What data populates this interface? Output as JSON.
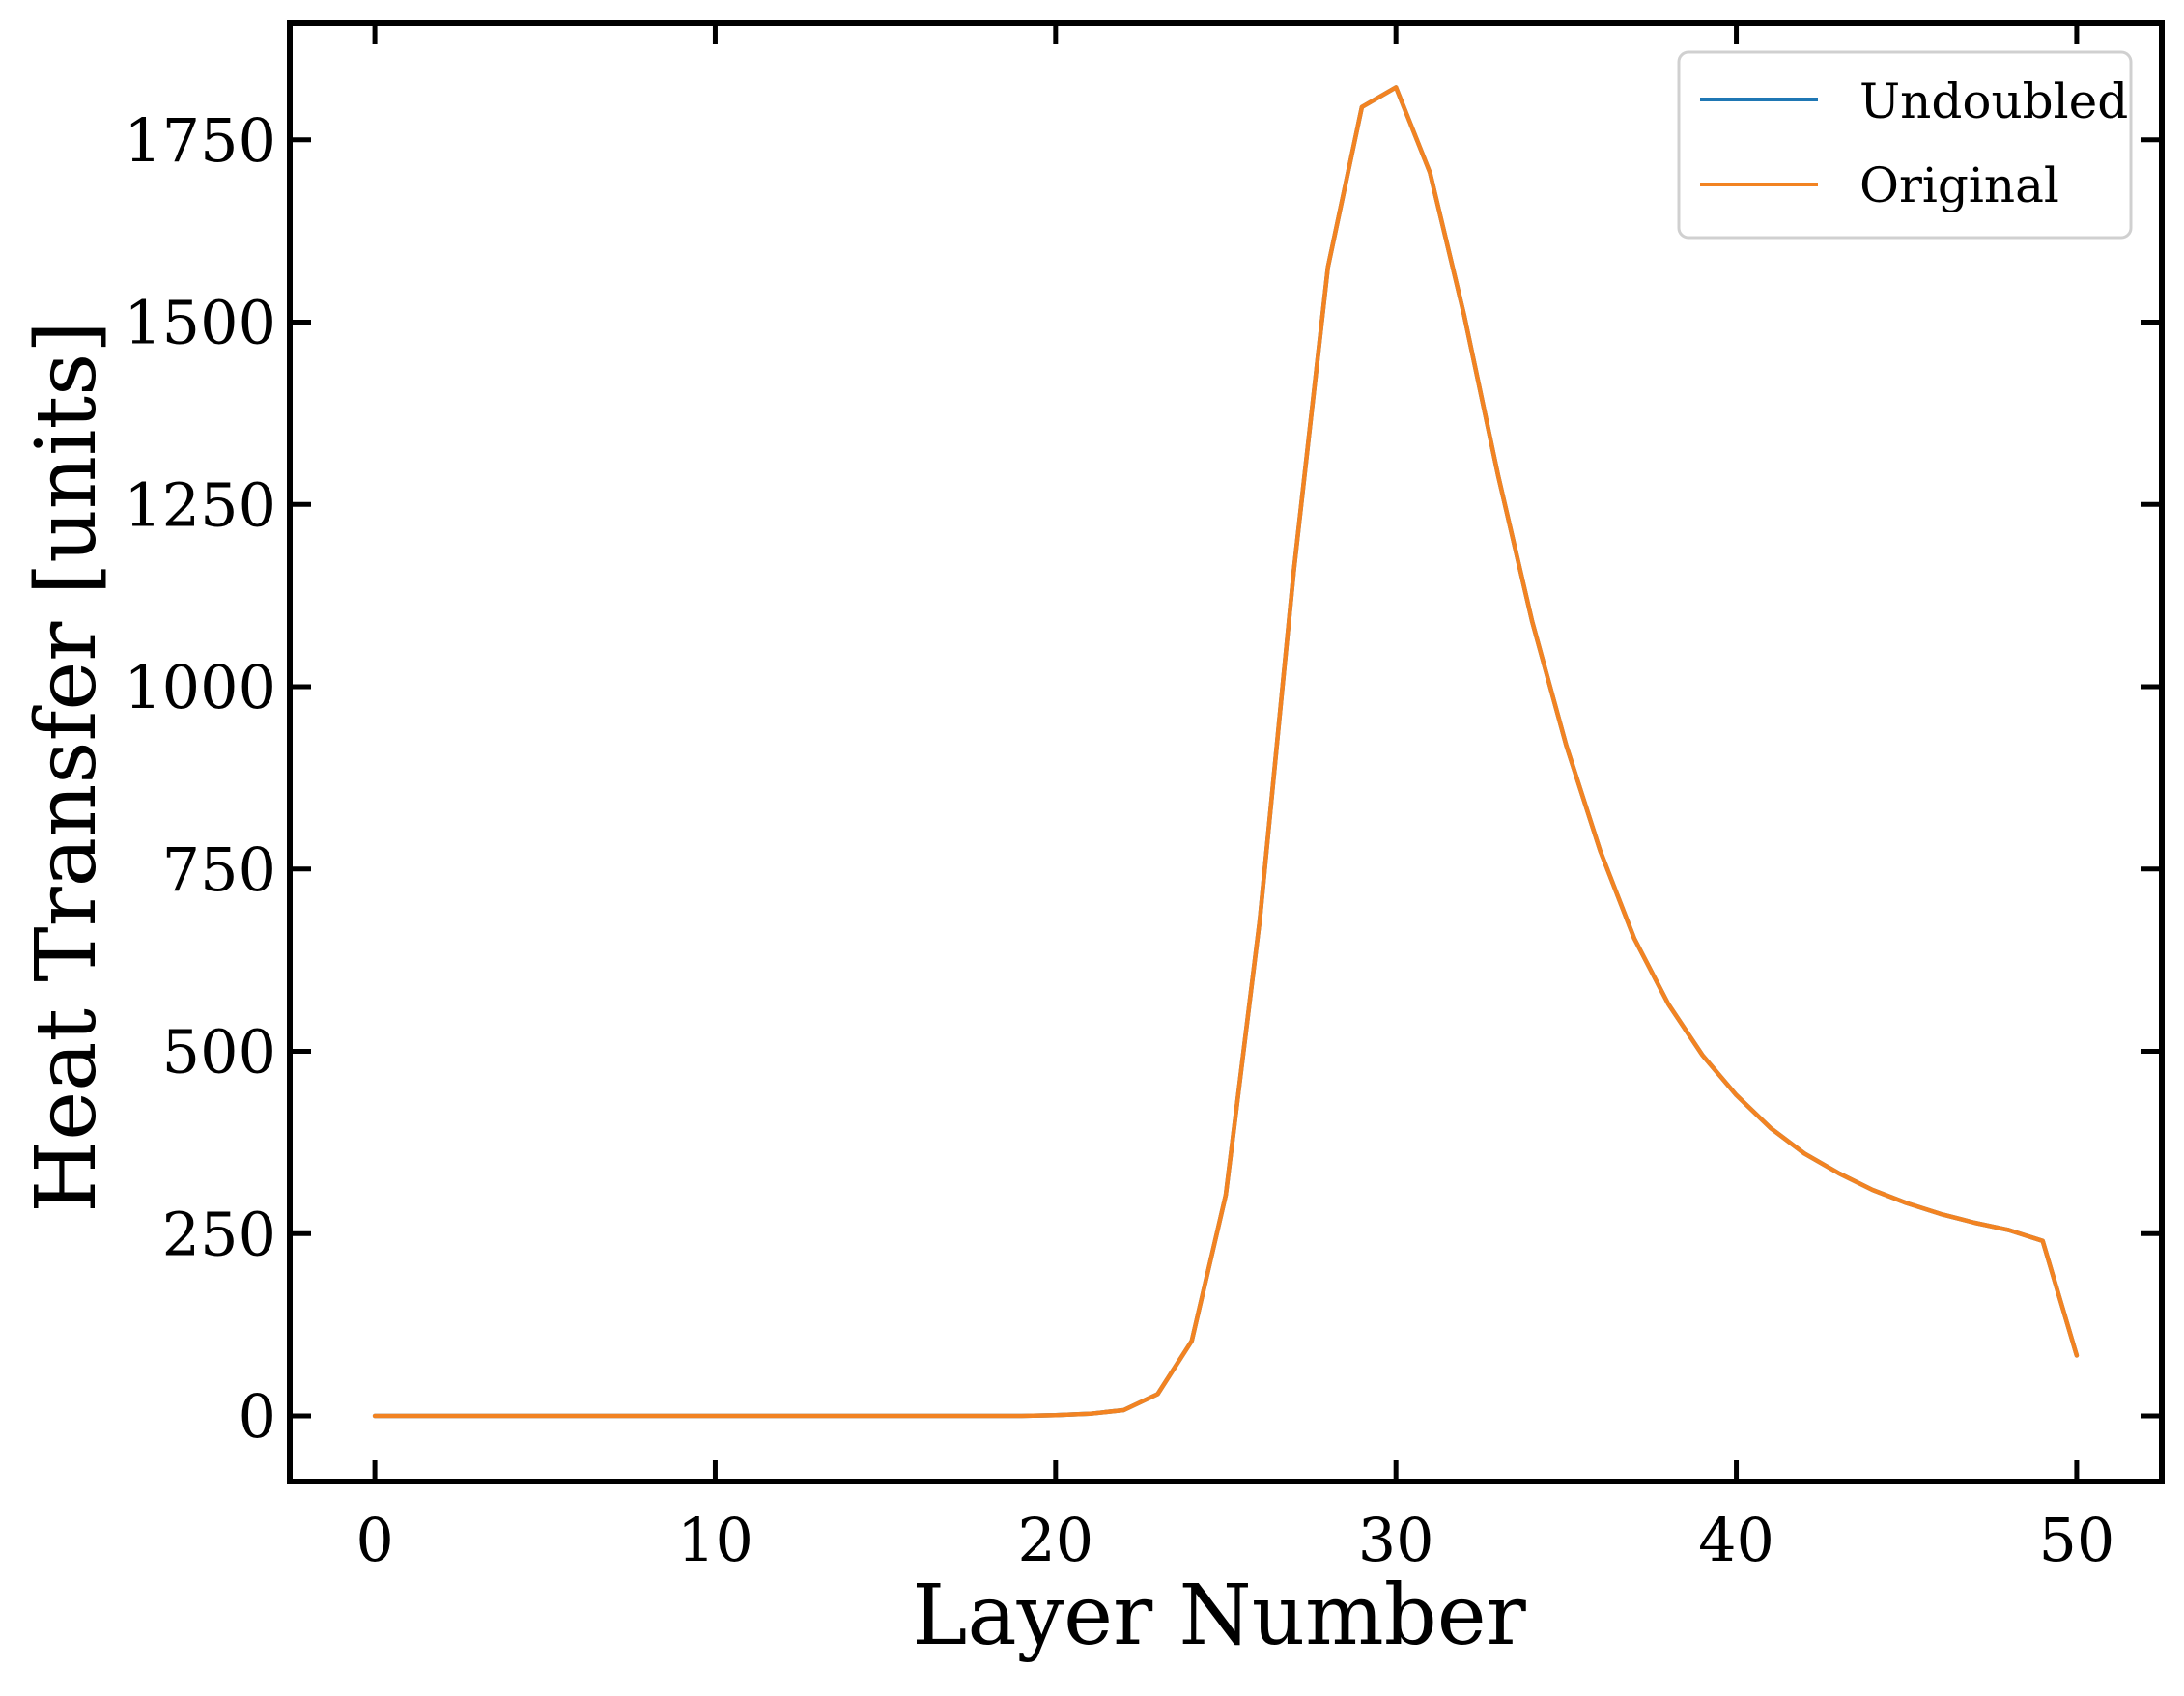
{
  "chart_data": {
    "type": "line",
    "title": "",
    "xlabel": "Layer Number",
    "ylabel": "Heat Transfer [units]",
    "xlim": [
      -2.5,
      52.5
    ],
    "ylim": [
      -90,
      1910
    ],
    "xticks": [
      0,
      10,
      20,
      30,
      40,
      50
    ],
    "yticks": [
      0,
      250,
      500,
      750,
      1000,
      1250,
      1500,
      1750
    ],
    "xtick_labels": [
      "0",
      "10",
      "20",
      "30",
      "40",
      "50"
    ],
    "ytick_labels": [
      "0",
      "250",
      "500",
      "750",
      "1000",
      "1250",
      "1500",
      "1750"
    ],
    "grid": false,
    "legend": {
      "placement": "top-right"
    },
    "x": [
      0,
      1,
      2,
      3,
      4,
      5,
      6,
      7,
      8,
      9,
      10,
      11,
      12,
      13,
      14,
      15,
      16,
      17,
      18,
      19,
      20,
      21,
      22,
      23,
      24,
      25,
      26,
      27,
      28,
      29,
      30,
      31,
      32,
      33,
      34,
      35,
      36,
      37,
      38,
      39,
      40,
      41,
      42,
      43,
      44,
      45,
      46,
      47,
      48,
      49,
      50
    ],
    "series": [
      {
        "name": "Undoubled",
        "color": "#1f77b4",
        "values": [
          0,
          0,
          0,
          0,
          0,
          0,
          0,
          0,
          0,
          0,
          0,
          0,
          0,
          0,
          0,
          0,
          0,
          0,
          0,
          0,
          1,
          3,
          8,
          30,
          103,
          303,
          680,
          1160,
          1575,
          1795,
          1822,
          1705,
          1510,
          1290,
          1090,
          920,
          775,
          655,
          565,
          495,
          440,
          395,
          360,
          333,
          310,
          292,
          277,
          265,
          255,
          240,
          83
        ]
      },
      {
        "name": "Original",
        "color": "#f28322",
        "values": [
          0,
          0,
          0,
          0,
          0,
          0,
          0,
          0,
          0,
          0,
          0,
          0,
          0,
          0,
          0,
          0,
          0,
          0,
          0,
          0,
          1,
          3,
          8,
          30,
          103,
          303,
          680,
          1160,
          1575,
          1795,
          1822,
          1705,
          1510,
          1290,
          1090,
          920,
          775,
          655,
          565,
          495,
          440,
          395,
          360,
          333,
          310,
          292,
          277,
          265,
          255,
          240,
          83
        ]
      }
    ]
  }
}
